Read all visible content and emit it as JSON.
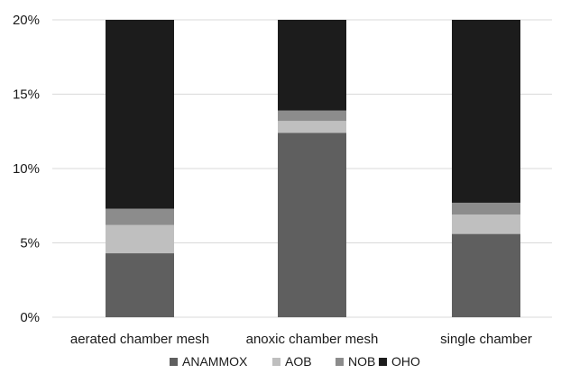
{
  "chart_data": {
    "type": "bar",
    "stacked": true,
    "title": "",
    "xlabel": "",
    "ylabel": "",
    "ylim": [
      0,
      20
    ],
    "y_format": "percent",
    "y_ticks": [
      0,
      5,
      10,
      15,
      20
    ],
    "y_tick_labels": [
      "0%",
      "5%",
      "10%",
      "15%",
      "20%"
    ],
    "grid": "horizontal",
    "legend_position": "bottom",
    "categories": [
      "aerated chamber mesh",
      "anoxic chamber mesh",
      "single chamber"
    ],
    "series": [
      {
        "name": "ANAMMOX",
        "color": "#5f5f5f",
        "values": [
          4.3,
          12.4,
          5.6
        ]
      },
      {
        "name": "AOB",
        "color": "#bfbfbf",
        "values": [
          1.9,
          0.8,
          1.3
        ]
      },
      {
        "name": "NOB",
        "color": "#8c8c8c",
        "values": [
          1.1,
          0.7,
          0.8
        ]
      },
      {
        "name": "OHO",
        "color": "#1c1c1c",
        "values": [
          12.7,
          6.1,
          12.3
        ]
      }
    ]
  }
}
